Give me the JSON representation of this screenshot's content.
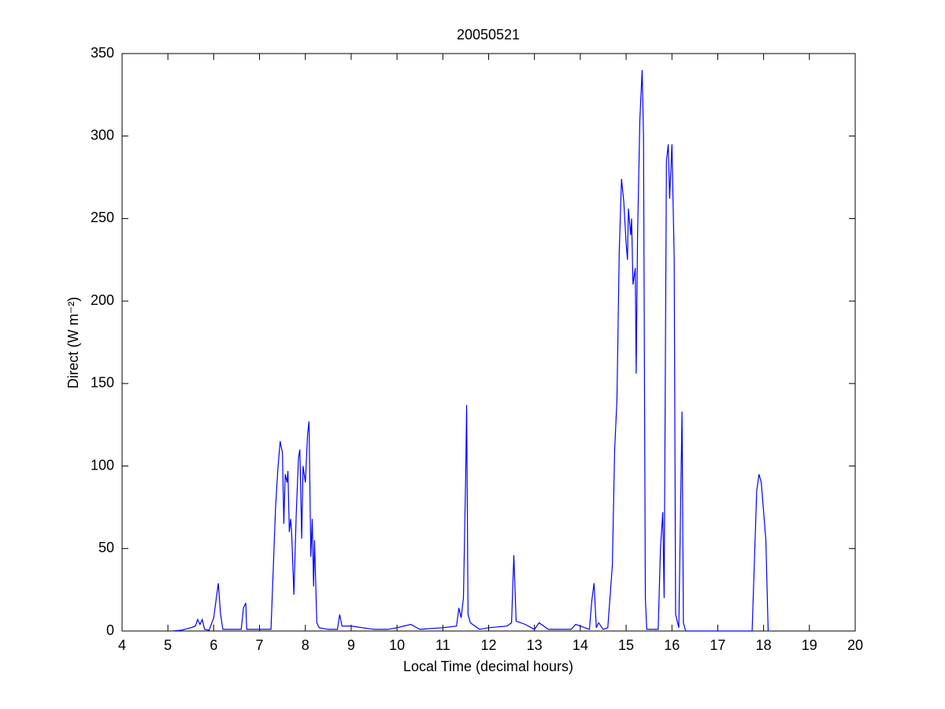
{
  "chart_data": {
    "type": "line",
    "title": "20050521",
    "xlabel": "Local Time (decimal hours)",
    "ylabel": "Direct (W m⁻²)",
    "x": [
      5.1,
      5.3,
      5.5,
      5.6,
      5.65,
      5.7,
      5.75,
      5.8,
      5.9,
      6.0,
      6.1,
      6.15,
      6.2,
      6.4,
      6.6,
      6.65,
      6.7,
      6.72,
      7.0,
      7.25,
      7.35,
      7.4,
      7.45,
      7.5,
      7.53,
      7.56,
      7.6,
      7.62,
      7.65,
      7.68,
      7.7,
      7.75,
      7.8,
      7.85,
      7.88,
      7.92,
      7.95,
      8.0,
      8.05,
      8.08,
      8.12,
      8.15,
      8.18,
      8.2,
      8.25,
      8.3,
      8.5,
      8.7,
      8.75,
      8.8,
      9.0,
      9.5,
      9.8,
      10.0,
      10.3,
      10.5,
      11.0,
      11.3,
      11.35,
      11.4,
      11.45,
      11.5,
      11.52,
      11.55,
      11.6,
      11.8,
      12.0,
      12.4,
      12.5,
      12.55,
      12.6,
      12.8,
      13.0,
      13.1,
      13.3,
      13.8,
      13.9,
      14.0,
      14.2,
      14.25,
      14.3,
      14.35,
      14.4,
      14.5,
      14.6,
      14.7,
      14.75,
      14.8,
      14.85,
      14.9,
      14.95,
      15.0,
      15.03,
      15.05,
      15.1,
      15.12,
      15.15,
      15.2,
      15.22,
      15.25,
      15.3,
      15.35,
      15.38,
      15.42,
      15.45,
      15.7,
      15.75,
      15.8,
      15.83,
      15.88,
      15.92,
      15.95,
      16.0,
      16.05,
      16.08,
      16.15,
      16.22,
      16.25,
      16.3,
      17.0,
      17.75,
      17.85,
      17.9,
      17.95,
      18.05,
      18.1
    ],
    "values": [
      0,
      0.5,
      2,
      3,
      7,
      4,
      7,
      1,
      0.5,
      8,
      29,
      10,
      1,
      1,
      1,
      14,
      17,
      1,
      1,
      1,
      75,
      98,
      115,
      108,
      65,
      95,
      90,
      97,
      60,
      68,
      60,
      22,
      70,
      105,
      110,
      56,
      100,
      90,
      120,
      127,
      45,
      68,
      27,
      55,
      5,
      2,
      1,
      1,
      10,
      3,
      3,
      1,
      1,
      2,
      4,
      1,
      2,
      3,
      14,
      8,
      20,
      96,
      137,
      10,
      5,
      1,
      2,
      3,
      5,
      46,
      6,
      4,
      1,
      5,
      1,
      1,
      4,
      3,
      1,
      18,
      29,
      2,
      5,
      1,
      2,
      40,
      110,
      140,
      230,
      274,
      260,
      235,
      225,
      256,
      240,
      250,
      210,
      220,
      156,
      240,
      310,
      340,
      300,
      20,
      1,
      1,
      50,
      72,
      20,
      285,
      295,
      262,
      295,
      225,
      10,
      2,
      133,
      5,
      0,
      0,
      0,
      85,
      95,
      90,
      55,
      0
    ],
    "color": "#0000ff",
    "xlim": [
      4,
      20
    ],
    "xticks": [
      4,
      5,
      6,
      7,
      8,
      9,
      10,
      11,
      12,
      13,
      14,
      15,
      16,
      17,
      18,
      19,
      20
    ],
    "ylim": [
      0,
      350
    ],
    "yticks": [
      0,
      50,
      100,
      150,
      200,
      250,
      300,
      350
    ],
    "grid": false
  }
}
